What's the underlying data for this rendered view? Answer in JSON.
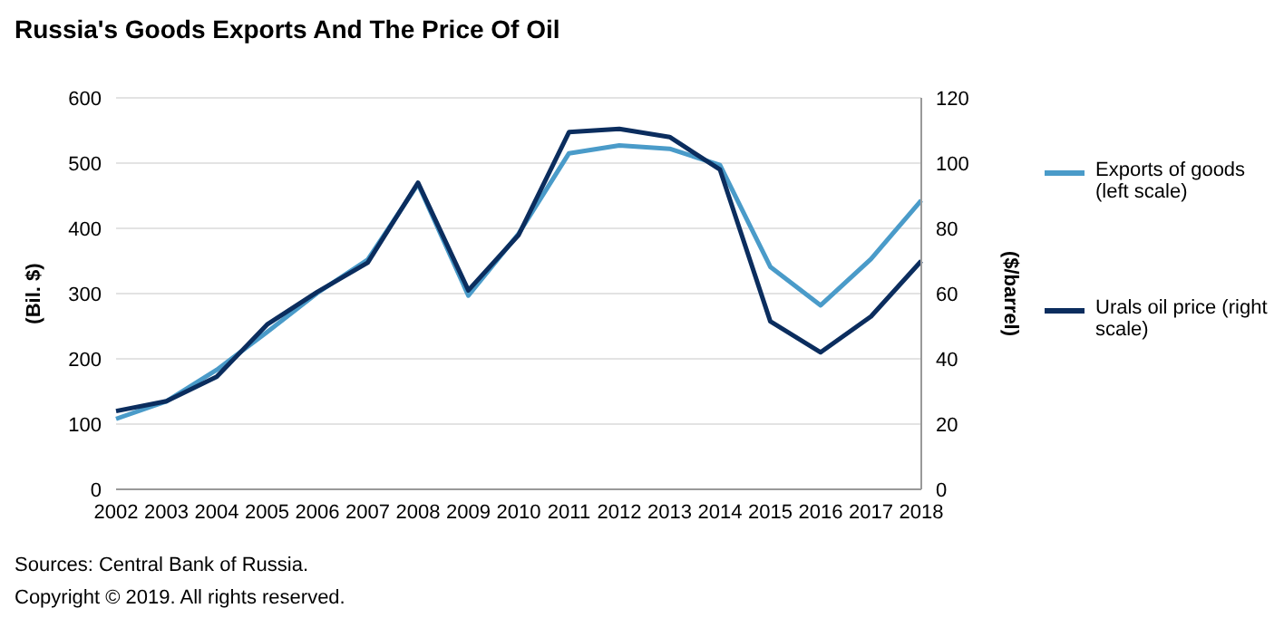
{
  "chart_data": {
    "type": "line",
    "title": "Russia's Goods Exports And The Price Of Oil",
    "ylabel": "(Bil. $)",
    "y2label": "($/barrel)",
    "categories": [
      "2002",
      "2003",
      "2004",
      "2005",
      "2006",
      "2007",
      "2008",
      "2009",
      "2010",
      "2011",
      "2012",
      "2013",
      "2014",
      "2015",
      "2016",
      "2017",
      "2018"
    ],
    "series": [
      {
        "name": "Exports of goods (left scale)",
        "color": "#4a9bc9",
        "values": [
          108,
          135,
          183,
          241,
          301,
          352,
          468,
          297,
          392,
          515,
          527,
          522,
          497,
          341,
          282,
          353,
          443
        ]
      },
      {
        "name": "Urals oil price (right scale)",
        "color": "#0b2d5e",
        "axis": "y2",
        "values": [
          24,
          27,
          34.5,
          50.5,
          60.5,
          69.5,
          94,
          61,
          78,
          109.5,
          110.5,
          108,
          98,
          51.5,
          42,
          53,
          70
        ]
      }
    ],
    "ylim": [
      0,
      600
    ],
    "yticks": [
      0,
      100,
      200,
      300,
      400,
      500,
      600
    ],
    "y2lim": [
      0,
      120
    ],
    "y2ticks": [
      0,
      20,
      40,
      60,
      80,
      100,
      120
    ],
    "grid": "y",
    "legend": "right",
    "marker": "none",
    "line_style": "solid",
    "annotations": [
      "Sources: Central Bank of Russia.",
      "Copyright © 2019. All rights reserved."
    ]
  }
}
